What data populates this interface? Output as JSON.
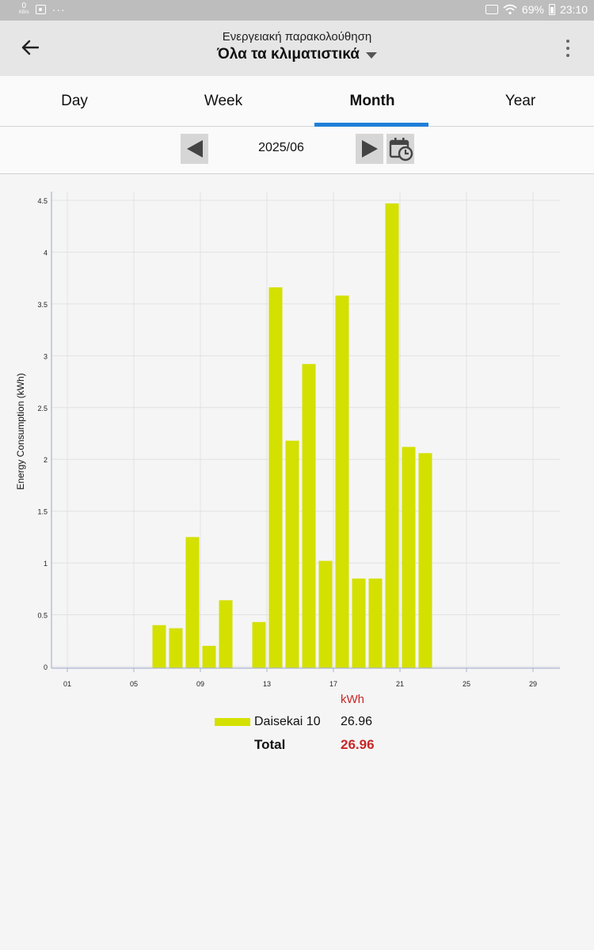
{
  "status_bar": {
    "kbs_value": "0",
    "kbs_unit": "KB/s",
    "overflow": "···",
    "battery_percent": "69%",
    "time": "23:10"
  },
  "app_bar": {
    "subtitle": "Ενεργειακή παρακολούθηση",
    "title": "Όλα τα κλιματιστικά"
  },
  "tabs": [
    {
      "label": "Day"
    },
    {
      "label": "Week"
    },
    {
      "label": "Month"
    },
    {
      "label": "Year"
    }
  ],
  "active_tab": "Month",
  "date_nav": {
    "period": "2025/06"
  },
  "chart_data": {
    "type": "bar",
    "ylabel": "Energy Consumption (kWh)",
    "xlabel": "",
    "ylim": [
      0,
      4.5
    ],
    "yticks": [
      "0",
      "0.5",
      "1",
      "1.5",
      "2",
      "2.5",
      "3",
      "3.5",
      "4",
      "4.5"
    ],
    "ytick_values": [
      0,
      0.5,
      1,
      1.5,
      2,
      2.5,
      3,
      3.5,
      4,
      4.5
    ],
    "xticks": [
      "01",
      "05",
      "09",
      "13",
      "17",
      "21",
      "25",
      "29"
    ],
    "xtick_days": [
      1,
      5,
      9,
      13,
      17,
      21,
      25,
      29
    ],
    "xlim": [
      1,
      30
    ],
    "grid": true,
    "bar_color": "#d4e000",
    "days": [
      6,
      7,
      8,
      9,
      10,
      12,
      13,
      14,
      15,
      16,
      17,
      18,
      19,
      20,
      21,
      22
    ],
    "values": [
      0.4,
      0.37,
      1.25,
      0.2,
      0.64,
      0.43,
      3.66,
      2.18,
      2.92,
      1.02,
      3.58,
      0.85,
      0.85,
      4.47,
      2.12,
      2.06
    ],
    "series": [
      {
        "name": "Daisekai 10",
        "total": "26.96"
      }
    ]
  },
  "summary": {
    "unit": "kWh",
    "legend_name": "Daisekai 10",
    "legend_value": "26.96",
    "total_label": "Total",
    "total_value": "26.96"
  }
}
